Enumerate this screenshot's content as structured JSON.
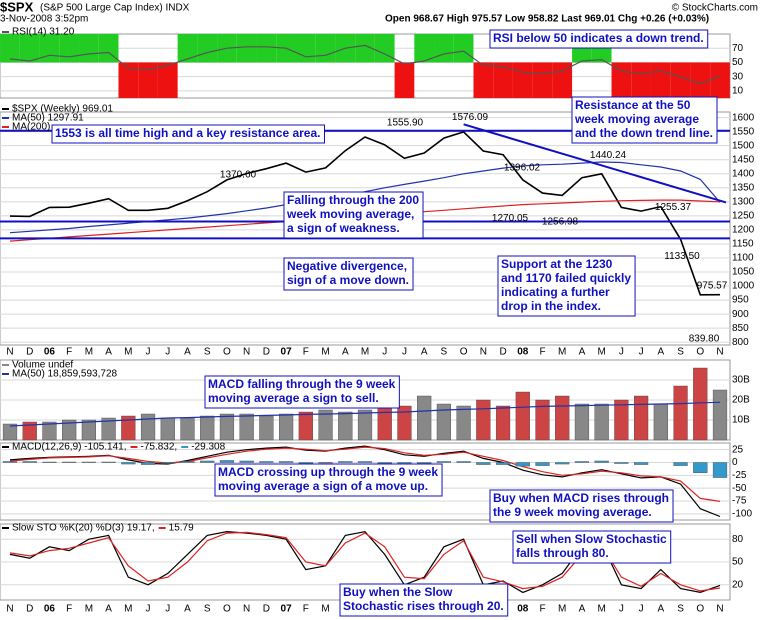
{
  "header": {
    "symbol": "$SPX",
    "name": "(S&P 500 Large Cap Index) INDX",
    "date": "3-Nov-2008 3:52pm",
    "quote": "Open 968.67  High 975.57  Low 958.82  Last 969.01  Chg +0.26 (+0.03%)",
    "source": "© StockCharts.com"
  },
  "chart_data": [
    {
      "type": "strip",
      "threshold": 50,
      "above_color": "#22cc22",
      "below_color": "#ee1111",
      "ylim": [
        0,
        90
      ],
      "yticks": [
        10,
        30,
        50,
        70
      ],
      "grid": true,
      "series": [
        {
          "name": "RSI(14) 31.20",
          "color": "#555555",
          "style": "line",
          "values": [
            55,
            52,
            60,
            58,
            62,
            64,
            42,
            40,
            46,
            55,
            64,
            70,
            72,
            72,
            70,
            58,
            60,
            70,
            74,
            62,
            48,
            52,
            62,
            66,
            46,
            44,
            36,
            34,
            38,
            52,
            54,
            38,
            34,
            38,
            30,
            20,
            31.2
          ]
        }
      ],
      "annotations": [
        [
          "RSI below 50 indicates a down trend."
        ]
      ]
    },
    {
      "type": "line",
      "ylim": [
        790,
        1620
      ],
      "yticks": [
        800,
        850,
        900,
        950,
        1000,
        1050,
        1100,
        1150,
        1200,
        1250,
        1300,
        1350,
        1400,
        1450,
        1500,
        1550,
        1600
      ],
      "grid": true,
      "categories": [
        "N",
        "D",
        "06",
        "F",
        "M",
        "A",
        "M",
        "J",
        "J",
        "A",
        "S",
        "O",
        "N",
        "D",
        "07",
        "F",
        "M",
        "A",
        "M",
        "J",
        "J",
        "A",
        "S",
        "O",
        "N",
        "D",
        "08",
        "F",
        "M",
        "A",
        "M",
        "J",
        "J",
        "A",
        "S",
        "O",
        "N"
      ],
      "series": [
        {
          "name": "$SPX (Weekly) 969.01",
          "color": "#000000",
          "style": "line",
          "values": [
            1249,
            1248,
            1280,
            1281,
            1295,
            1311,
            1270,
            1270,
            1277,
            1304,
            1336,
            1378,
            1401,
            1418,
            1438,
            1406,
            1421,
            1482,
            1531,
            1503,
            1455,
            1474,
            1527,
            1549,
            1481,
            1468,
            1378,
            1331,
            1323,
            1386,
            1400,
            1280,
            1267,
            1283,
            1166,
            969,
            969.01
          ]
        },
        {
          "name": "MA(50) 1297.91",
          "color": "#2233aa",
          "style": "line",
          "values": [
            1190,
            1195,
            1200,
            1205,
            1212,
            1218,
            1224,
            1230,
            1236,
            1242,
            1250,
            1258,
            1268,
            1278,
            1290,
            1300,
            1310,
            1322,
            1336,
            1350,
            1362,
            1374,
            1386,
            1400,
            1410,
            1420,
            1428,
            1432,
            1434,
            1438,
            1442,
            1440,
            1432,
            1424,
            1410,
            1380,
            1297.91
          ]
        },
        {
          "name": "MA(200)",
          "color": "#dd2222",
          "style": "line",
          "values": [
            1160,
            1165,
            1170,
            1175,
            1180,
            1185,
            1190,
            1195,
            1200,
            1205,
            1210,
            1215,
            1220,
            1225,
            1230,
            1235,
            1240,
            1245,
            1250,
            1255,
            1260,
            1265,
            1270,
            1275,
            1280,
            1285,
            1290,
            1293,
            1296,
            1299,
            1302,
            1304,
            1305,
            1306,
            1306,
            1303,
            1300
          ]
        }
      ],
      "hlines": [
        1553,
        1230,
        1170
      ],
      "hline_color": "#1010c0",
      "levels": [
        {
          "value": 1555.9,
          "label": "1555.90"
        },
        {
          "value": 1576.09,
          "label": "1576.09"
        },
        {
          "value": 1370.6,
          "label": "1370.60"
        },
        {
          "value": 1396.02,
          "label": "1396.02"
        },
        {
          "value": 1440.24,
          "label": "1440.24"
        },
        {
          "value": 1270.05,
          "label": "1270.05"
        },
        {
          "value": 1256.98,
          "label": "1256.98"
        },
        {
          "value": 1255.37,
          "label": "1255.37"
        },
        {
          "value": 1133.5,
          "label": "1133.50"
        },
        {
          "value": 975.57,
          "label": "975.57"
        },
        {
          "value": 839.8,
          "label": "839.80"
        }
      ],
      "annotations": [
        [
          "1553 is all time high and a key resistance area."
        ],
        [
          "Resistance at the 50",
          "week moving average",
          "and the down trend line."
        ],
        [
          "Falling through the 200",
          "week moving average,",
          "a sign of weakness."
        ],
        [
          "Negative divergence,",
          "sign of a move down."
        ],
        [
          "Support at the 1230",
          "and 1170 failed quickly",
          "indicating a further",
          "drop in the index."
        ]
      ]
    },
    {
      "type": "bar",
      "ylim": [
        0,
        40
      ],
      "yticks": [
        {
          "value": 10,
          "label": "10B"
        },
        {
          "value": 20,
          "label": "20B"
        },
        {
          "value": 30,
          "label": "30B"
        }
      ],
      "grid": true,
      "series": [
        {
          "name": "Volume undef",
          "color": "#888888",
          "down_color": "#cc4444",
          "style": "bar",
          "values": [
            8,
            9,
            9,
            10,
            10,
            11,
            12,
            13,
            11,
            11,
            12,
            13,
            13,
            12,
            13,
            14,
            15,
            14,
            15,
            16,
            17,
            22,
            18,
            17,
            20,
            17,
            24,
            20,
            22,
            18,
            18,
            20,
            22,
            18,
            27,
            36,
            25
          ]
        },
        {
          "name": "MA(50) 18,859,593,728",
          "color": "#2233aa",
          "style": "line",
          "values": [
            7,
            7.5,
            8,
            8.5,
            9,
            9.5,
            10,
            10.5,
            11,
            11.2,
            11.5,
            11.8,
            12,
            12.3,
            12.5,
            12.8,
            13,
            13.2,
            13.5,
            13.8,
            14,
            14.5,
            15,
            15.3,
            15.6,
            16,
            16.4,
            16.8,
            17,
            17.2,
            17.4,
            17.6,
            17.8,
            18,
            18.2,
            18.6,
            18.86
          ]
        }
      ],
      "annotations": [
        [
          "MACD falling through the 9 week",
          "moving average a sign to sell."
        ]
      ]
    },
    {
      "type": "line",
      "ylim": [
        -112,
        38
      ],
      "yticks": [
        25,
        0,
        -25,
        -50,
        -75,
        -100
      ],
      "grid": true,
      "series": [
        {
          "name": "MACD(12,26,9) -105.141,",
          "color": "#000000",
          "style": "line",
          "values": [
            5,
            8,
            10,
            11,
            12,
            14,
            5,
            -2,
            -3,
            4,
            12,
            20,
            25,
            28,
            30,
            24,
            22,
            28,
            32,
            25,
            15,
            12,
            18,
            22,
            8,
            0,
            -15,
            -24,
            -28,
            -20,
            -14,
            -22,
            -30,
            -28,
            -42,
            -90,
            -105.141
          ]
        },
        {
          "name": "-75.832,",
          "color": "#dd2222",
          "style": "line",
          "values": [
            3,
            6,
            9,
            10,
            11,
            13,
            8,
            2,
            -1,
            2,
            9,
            16,
            22,
            26,
            28,
            26,
            23,
            26,
            30,
            27,
            19,
            14,
            16,
            20,
            12,
            4,
            -8,
            -18,
            -25,
            -22,
            -17,
            -20,
            -26,
            -28,
            -36,
            -70,
            -75.832
          ]
        },
        {
          "name": "-29.308",
          "color": "#3399cc",
          "style": "bar",
          "values": [
            2,
            2,
            1,
            1,
            1,
            1,
            -3,
            -4,
            -2,
            2,
            3,
            4,
            3,
            2,
            2,
            -2,
            -1,
            2,
            2,
            -2,
            -4,
            -2,
            2,
            2,
            -4,
            -4,
            -7,
            -6,
            -3,
            2,
            3,
            -2,
            -4,
            0,
            -6,
            -20,
            -29.308
          ]
        }
      ],
      "annotations": [
        [
          "MACD crossing up through the 9 week",
          "moving average a sign of a move up."
        ],
        [
          "Buy when MACD rises through",
          "the 9 week moving average."
        ]
      ]
    },
    {
      "type": "line",
      "ylim": [
        0,
        100
      ],
      "yticks": [
        20,
        50,
        80
      ],
      "grid": true,
      "categories": [
        "N",
        "D",
        "06",
        "F",
        "M",
        "A",
        "M",
        "J",
        "J",
        "A",
        "S",
        "O",
        "N",
        "D",
        "07",
        "F",
        "M",
        "A",
        "M",
        "J",
        "J",
        "A",
        "S",
        "O",
        "N",
        "D",
        "08",
        "F",
        "M",
        "A",
        "M",
        "J",
        "J",
        "A",
        "S",
        "O",
        "N"
      ],
      "series": [
        {
          "name": "Slow STO %K(20) %D(3) 19.17,",
          "color": "#000000",
          "style": "line",
          "values": [
            60,
            55,
            70,
            65,
            80,
            85,
            30,
            20,
            35,
            60,
            85,
            90,
            88,
            85,
            80,
            40,
            45,
            85,
            90,
            60,
            20,
            30,
            70,
            80,
            20,
            25,
            10,
            20,
            35,
            70,
            75,
            20,
            15,
            40,
            15,
            10,
            19.17
          ]
        },
        {
          "name": "15.79",
          "color": "#dd2222",
          "style": "line",
          "values": [
            62,
            58,
            65,
            68,
            75,
            82,
            45,
            25,
            30,
            50,
            78,
            88,
            89,
            86,
            82,
            50,
            45,
            75,
            88,
            70,
            30,
            28,
            60,
            78,
            30,
            24,
            15,
            18,
            30,
            60,
            72,
            30,
            18,
            35,
            20,
            12,
            15.79
          ]
        }
      ],
      "annotations": [
        [
          "Sell when Slow Stochastic",
          "falls through 80."
        ],
        [
          "Buy when the Slow",
          "Stochastic rises through 20."
        ]
      ]
    }
  ]
}
